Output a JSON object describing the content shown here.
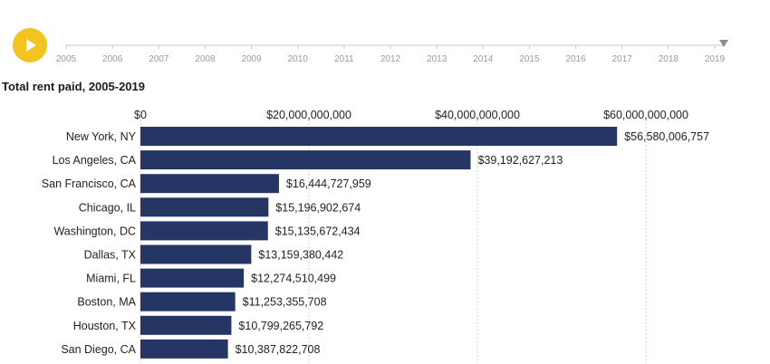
{
  "controls": {
    "play_icon": "play-icon",
    "accent_color": "#f5c31d"
  },
  "timeline": {
    "years": [
      "2005",
      "2006",
      "2007",
      "2008",
      "2009",
      "2010",
      "2011",
      "2012",
      "2013",
      "2014",
      "2015",
      "2016",
      "2017",
      "2018",
      "2019"
    ],
    "selected_year": "2019"
  },
  "chart_data": {
    "type": "bar",
    "orientation": "horizontal",
    "title": "Total rent paid, 2005-2019",
    "categories": [
      "New York, NY",
      "Los Angeles, CA",
      "San Francisco, CA",
      "Chicago, IL",
      "Washington, DC",
      "Dallas, TX",
      "Miami, FL",
      "Boston, MA",
      "Houston, TX",
      "San Diego, CA"
    ],
    "values": [
      56580006757,
      39192627213,
      16444727959,
      15196902674,
      15135672434,
      13159380442,
      12274510499,
      11253355708,
      10799265792,
      10387822708
    ],
    "value_labels": [
      "$56,580,006,757",
      "$39,192,627,213",
      "$16,444,727,959",
      "$15,196,902,674",
      "$15,135,672,434",
      "$13,159,380,442",
      "$12,274,510,499",
      "$11,253,355,708",
      "$10,799,265,792",
      "$10,387,822,708"
    ],
    "xticks": [
      0,
      20000000000,
      40000000000,
      60000000000
    ],
    "xtick_labels": [
      "$0",
      "$20,000,000,000",
      "$40,000,000,000",
      "$60,000,000,000"
    ],
    "xlim": [
      0,
      60000000000
    ],
    "grid": true,
    "bar_color": "#263664"
  }
}
